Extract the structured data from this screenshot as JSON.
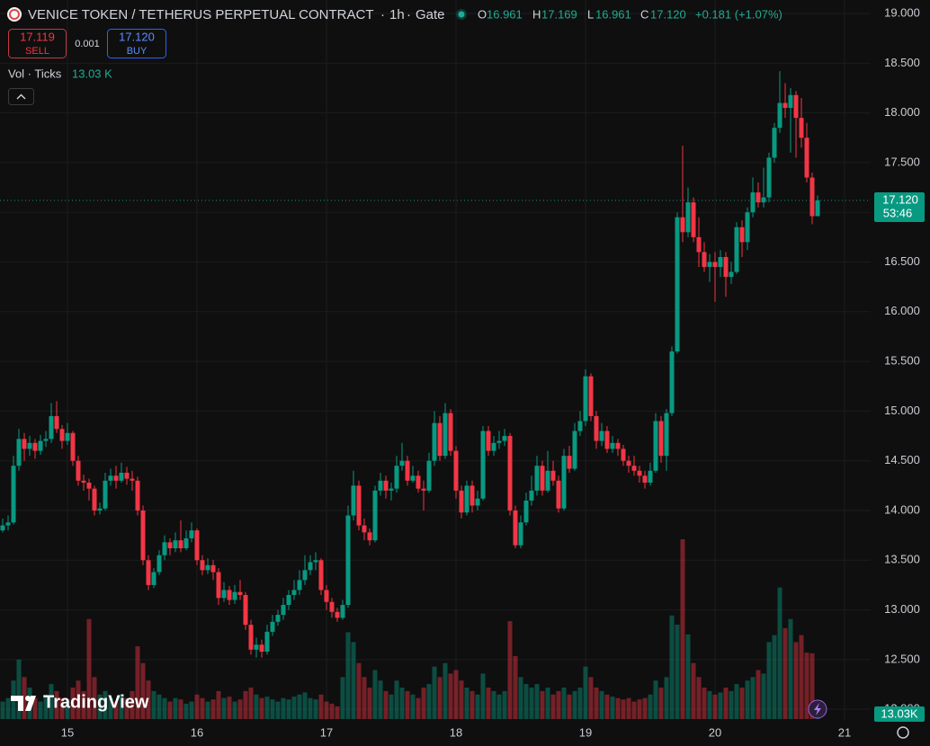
{
  "chart_data": {
    "type": "candlestick",
    "header": {
      "symbol": "VENICE TOKEN / TETHERUS PERPETUAL CONTRACT",
      "sep": "·",
      "interval": "1h",
      "exchange": "Gate",
      "o": "O",
      "open": "16.961",
      "h": "H",
      "high": "17.169",
      "l": "L",
      "low": "16.961",
      "c": "C",
      "close": "17.120",
      "change": "+0.181 (+1.07%)"
    },
    "trade": {
      "sell_price": "17.119",
      "sell": "SELL",
      "spread": "0.001",
      "buy_price": "17.120",
      "buy": "BUY"
    },
    "last_price_label": "17.120",
    "countdown": "53:46",
    "watermark": "TradingView",
    "up_color": "#089981",
    "down_color": "#f23645",
    "grid": true,
    "ylim": [
      11.902,
      19.136
    ],
    "yticks": [
      {
        "value": 12,
        "label": "12.000"
      },
      {
        "value": 12.5,
        "label": "12.500"
      },
      {
        "value": 13,
        "label": "13.000"
      },
      {
        "value": 13.5,
        "label": "13.500"
      },
      {
        "value": 14,
        "label": "14.000"
      },
      {
        "value": 14.5,
        "label": "14.500"
      },
      {
        "value": 15,
        "label": "15.000"
      },
      {
        "value": 15.5,
        "label": "15.500"
      },
      {
        "value": 16,
        "label": "16.000"
      },
      {
        "value": 16.5,
        "label": "16.500"
      },
      {
        "value": 17,
        "label": "17.000"
      },
      {
        "value": 17.5,
        "label": "17.500"
      },
      {
        "value": 18,
        "label": "18.000"
      },
      {
        "value": 18.5,
        "label": "18.500"
      },
      {
        "value": 19,
        "label": "19.000"
      }
    ],
    "categories": [
      null,
      null,
      null,
      null,
      null,
      null,
      null,
      null,
      null,
      null,
      null,
      null,
      "15",
      null,
      null,
      null,
      null,
      null,
      null,
      null,
      null,
      null,
      null,
      null,
      null,
      null,
      null,
      null,
      null,
      null,
      null,
      null,
      null,
      null,
      null,
      null,
      "16",
      null,
      null,
      null,
      null,
      null,
      null,
      null,
      null,
      null,
      null,
      null,
      null,
      null,
      null,
      null,
      null,
      null,
      null,
      null,
      null,
      null,
      null,
      null,
      "17",
      null,
      null,
      null,
      null,
      null,
      null,
      null,
      null,
      null,
      null,
      null,
      null,
      null,
      null,
      null,
      null,
      null,
      null,
      null,
      null,
      null,
      null,
      null,
      "18",
      null,
      null,
      null,
      null,
      null,
      null,
      null,
      null,
      null,
      null,
      null,
      null,
      null,
      null,
      null,
      null,
      null,
      null,
      null,
      null,
      null,
      null,
      null,
      "19",
      null,
      null,
      null,
      null,
      null,
      null,
      null,
      null,
      null,
      null,
      null,
      null,
      null,
      null,
      null,
      null,
      null,
      null,
      null,
      null,
      null,
      null,
      null,
      "20",
      null,
      null,
      null,
      null,
      null,
      null,
      null,
      null,
      null,
      null,
      null,
      null,
      null,
      null,
      null,
      null,
      null,
      null,
      null,
      null,
      null,
      null,
      null,
      "21"
    ],
    "open": [
      13.8,
      13.85,
      13.88,
      14.45,
      14.72,
      14.62,
      14.68,
      14.6,
      14.7,
      14.72,
      14.95,
      14.82,
      14.7,
      14.78,
      14.5,
      14.3,
      14.28,
      14.22,
      14.0,
      14.02,
      14.3,
      14.35,
      14.3,
      14.38,
      14.32,
      14.3,
      14.0,
      13.5,
      13.25,
      13.38,
      13.55,
      13.68,
      13.62,
      13.7,
      13.62,
      13.72,
      13.8,
      13.5,
      13.4,
      13.45,
      13.38,
      13.12,
      13.2,
      13.1,
      13.18,
      13.15,
      12.85,
      12.6,
      12.65,
      12.58,
      12.78,
      12.88,
      12.95,
      13.05,
      13.15,
      13.2,
      13.3,
      13.4,
      13.48,
      13.5,
      13.2,
      13.08,
      12.98,
      12.92,
      13.05,
      13.95,
      14.25,
      13.85,
      13.78,
      13.7,
      14.2,
      14.3,
      14.2,
      14.22,
      14.45,
      14.5,
      14.3,
      14.35,
      14.22,
      14.2,
      14.5,
      14.88,
      14.55,
      14.98,
      14.6,
      14.2,
      13.98,
      14.25,
      14.05,
      14.12,
      14.8,
      14.6,
      14.68,
      14.7,
      14.75,
      14.0,
      13.65,
      13.88,
      14.1,
      14.2,
      14.45,
      14.2,
      14.4,
      14.3,
      14.02,
      14.55,
      14.42,
      14.8,
      14.9,
      15.35,
      14.95,
      14.7,
      14.8,
      14.62,
      14.68,
      14.62,
      14.5,
      14.45,
      14.4,
      14.35,
      14.28,
      14.4,
      14.9,
      14.55,
      14.98,
      15.6,
      16.95,
      16.8,
      17.1,
      16.75,
      16.6,
      16.45,
      16.5,
      16.45,
      16.55,
      16.35,
      16.4,
      16.85,
      16.7,
      17.0,
      17.2,
      17.1,
      17.15,
      17.55,
      17.85,
      18.1,
      18.05,
      18.18,
      17.95,
      17.75,
      17.35,
      16.961,
      null,
      null,
      null,
      null,
      null
    ],
    "high": [
      13.92,
      13.95,
      14.55,
      14.82,
      14.78,
      14.75,
      14.72,
      14.76,
      14.8,
      15.08,
      15.1,
      14.86,
      14.88,
      14.8,
      14.55,
      14.36,
      14.32,
      14.25,
      14.08,
      14.38,
      14.42,
      14.45,
      14.48,
      14.44,
      14.4,
      14.34,
      14.05,
      13.55,
      13.42,
      13.6,
      13.75,
      13.72,
      13.78,
      13.9,
      13.8,
      13.88,
      13.82,
      13.55,
      13.52,
      13.5,
      13.42,
      13.28,
      13.24,
      13.25,
      13.3,
      13.18,
      12.9,
      12.72,
      12.7,
      12.85,
      12.95,
      13.0,
      13.12,
      13.2,
      13.3,
      13.4,
      13.55,
      13.55,
      13.58,
      13.52,
      13.25,
      13.12,
      13.02,
      13.1,
      14.05,
      14.4,
      14.3,
      13.92,
      13.82,
      14.25,
      14.38,
      14.35,
      14.28,
      14.55,
      14.68,
      14.55,
      14.45,
      14.4,
      14.3,
      14.58,
      15.0,
      14.95,
      15.08,
      15.02,
      14.65,
      14.25,
      14.3,
      14.3,
      14.2,
      14.85,
      14.85,
      14.75,
      14.8,
      14.82,
      14.78,
      14.05,
      13.95,
      14.18,
      14.35,
      14.55,
      14.5,
      14.6,
      14.5,
      14.35,
      14.62,
      14.65,
      14.88,
      15.0,
      15.42,
      15.38,
      15.0,
      14.88,
      14.85,
      14.75,
      14.72,
      14.66,
      14.55,
      14.55,
      14.45,
      14.4,
      14.48,
      14.98,
      14.95,
      15.02,
      15.65,
      17.0,
      17.67,
      17.25,
      17.15,
      16.95,
      16.7,
      16.58,
      16.6,
      16.62,
      16.6,
      16.5,
      16.9,
      16.92,
      17.05,
      17.35,
      17.3,
      17.45,
      17.6,
      17.9,
      18.42,
      18.3,
      18.25,
      18.22,
      18.15,
      17.9,
      17.4,
      17.169,
      null,
      null,
      null,
      null,
      null
    ],
    "low": [
      13.78,
      13.8,
      13.86,
      14.4,
      14.5,
      14.55,
      14.52,
      14.56,
      14.64,
      14.68,
      14.78,
      14.62,
      14.66,
      14.45,
      14.25,
      14.2,
      14.1,
      13.95,
      13.96,
      14.0,
      14.25,
      14.22,
      14.28,
      14.26,
      14.2,
      13.95,
      13.45,
      13.2,
      13.22,
      13.35,
      13.5,
      13.55,
      13.58,
      13.58,
      13.6,
      13.68,
      13.45,
      13.35,
      13.36,
      13.3,
      13.05,
      13.08,
      13.05,
      13.06,
      13.1,
      12.8,
      12.55,
      12.52,
      12.52,
      12.55,
      12.74,
      12.84,
      12.9,
      13.0,
      13.1,
      13.15,
      13.25,
      13.35,
      13.4,
      13.15,
      13.0,
      12.92,
      12.88,
      12.9,
      13.02,
      13.9,
      13.8,
      13.7,
      13.65,
      13.68,
      14.15,
      14.12,
      14.1,
      14.18,
      14.4,
      14.25,
      14.28,
      14.18,
      14.0,
      14.18,
      14.45,
      14.5,
      14.52,
      14.55,
      14.12,
      13.92,
      13.95,
      13.98,
      14.0,
      14.1,
      14.55,
      14.55,
      14.62,
      14.65,
      13.95,
      13.62,
      13.62,
      13.85,
      14.05,
      14.15,
      14.15,
      14.18,
      14.25,
      13.98,
      14.0,
      14.38,
      14.4,
      14.75,
      14.85,
      14.9,
      14.62,
      14.65,
      14.58,
      14.58,
      14.55,
      14.45,
      14.38,
      14.35,
      14.28,
      14.22,
      14.25,
      14.38,
      14.48,
      14.4,
      14.95,
      15.58,
      16.7,
      16.75,
      16.7,
      16.45,
      16.4,
      16.3,
      16.1,
      16.35,
      16.15,
      16.28,
      16.38,
      16.55,
      16.62,
      16.95,
      17.05,
      17.05,
      17.1,
      17.5,
      17.8,
      17.95,
      17.6,
      17.55,
      17.65,
      17.3,
      16.88,
      16.961,
      null,
      null,
      null,
      null,
      null
    ],
    "close": [
      13.85,
      13.88,
      14.45,
      14.72,
      14.62,
      14.68,
      14.6,
      14.7,
      14.72,
      14.95,
      14.82,
      14.7,
      14.78,
      14.5,
      14.3,
      14.28,
      14.22,
      14.0,
      14.02,
      14.3,
      14.35,
      14.3,
      14.38,
      14.32,
      14.3,
      14.0,
      13.5,
      13.25,
      13.38,
      13.55,
      13.68,
      13.62,
      13.7,
      13.62,
      13.72,
      13.8,
      13.5,
      13.4,
      13.45,
      13.38,
      13.12,
      13.2,
      13.1,
      13.18,
      13.15,
      12.85,
      12.6,
      12.65,
      12.58,
      12.78,
      12.88,
      12.95,
      13.05,
      13.15,
      13.2,
      13.3,
      13.4,
      13.48,
      13.5,
      13.2,
      13.08,
      12.98,
      12.92,
      13.05,
      13.95,
      14.25,
      13.85,
      13.78,
      13.7,
      14.2,
      14.3,
      14.2,
      14.22,
      14.45,
      14.5,
      14.3,
      14.35,
      14.22,
      14.2,
      14.5,
      14.88,
      14.55,
      14.98,
      14.6,
      14.2,
      13.98,
      14.25,
      14.05,
      14.12,
      14.8,
      14.6,
      14.68,
      14.7,
      14.75,
      14.0,
      13.65,
      13.88,
      14.1,
      14.2,
      14.45,
      14.2,
      14.4,
      14.3,
      14.02,
      14.55,
      14.42,
      14.8,
      14.9,
      15.35,
      14.95,
      14.7,
      14.8,
      14.62,
      14.68,
      14.62,
      14.5,
      14.45,
      14.4,
      14.35,
      14.28,
      14.4,
      14.9,
      14.55,
      14.98,
      15.6,
      16.95,
      16.8,
      17.1,
      16.75,
      16.6,
      16.45,
      16.5,
      16.45,
      16.55,
      16.35,
      16.4,
      16.85,
      16.7,
      17.0,
      17.2,
      17.1,
      17.15,
      17.55,
      17.85,
      18.1,
      18.05,
      18.18,
      17.95,
      17.75,
      17.35,
      16.961,
      17.12,
      null,
      null,
      null,
      null,
      null
    ],
    "volume": {
      "name": "Vol · Ticks",
      "last_label": "13.03 K",
      "axis_label": "13.03K",
      "values": [
        25000,
        30000,
        55000,
        85000,
        60000,
        45000,
        30000,
        25000,
        35000,
        50000,
        40000,
        30000,
        28000,
        45000,
        55000,
        40000,
        143000,
        60000,
        35000,
        40000,
        30000,
        25000,
        35000,
        30000,
        40000,
        104000,
        80000,
        55000,
        40000,
        35000,
        30000,
        25000,
        30000,
        28000,
        22000,
        25000,
        35000,
        30000,
        25000,
        28000,
        40000,
        30000,
        32000,
        25000,
        28000,
        40000,
        45000,
        35000,
        30000,
        32000,
        28000,
        25000,
        30000,
        28000,
        32000,
        35000,
        38000,
        30000,
        28000,
        35000,
        25000,
        22000,
        18000,
        60000,
        124000,
        110000,
        80000,
        60000,
        45000,
        70000,
        55000,
        40000,
        35000,
        55000,
        45000,
        40000,
        35000,
        30000,
        45000,
        50000,
        75000,
        60000,
        80000,
        65000,
        70000,
        55000,
        45000,
        40000,
        35000,
        65000,
        45000,
        40000,
        35000,
        40000,
        140000,
        90000,
        60000,
        50000,
        45000,
        50000,
        40000,
        45000,
        35000,
        40000,
        45000,
        35000,
        40000,
        45000,
        75000,
        60000,
        45000,
        40000,
        35000,
        32000,
        30000,
        28000,
        30000,
        25000,
        28000,
        30000,
        35000,
        55000,
        45000,
        60000,
        148000,
        135000,
        257000,
        121000,
        80000,
        60000,
        45000,
        40000,
        35000,
        38000,
        45000,
        40000,
        50000,
        45000,
        55000,
        60000,
        70000,
        65000,
        110000,
        120000,
        188000,
        130000,
        143000,
        110000,
        120000,
        95000,
        94000,
        13030,
        null,
        null,
        null,
        null,
        null
      ]
    }
  }
}
